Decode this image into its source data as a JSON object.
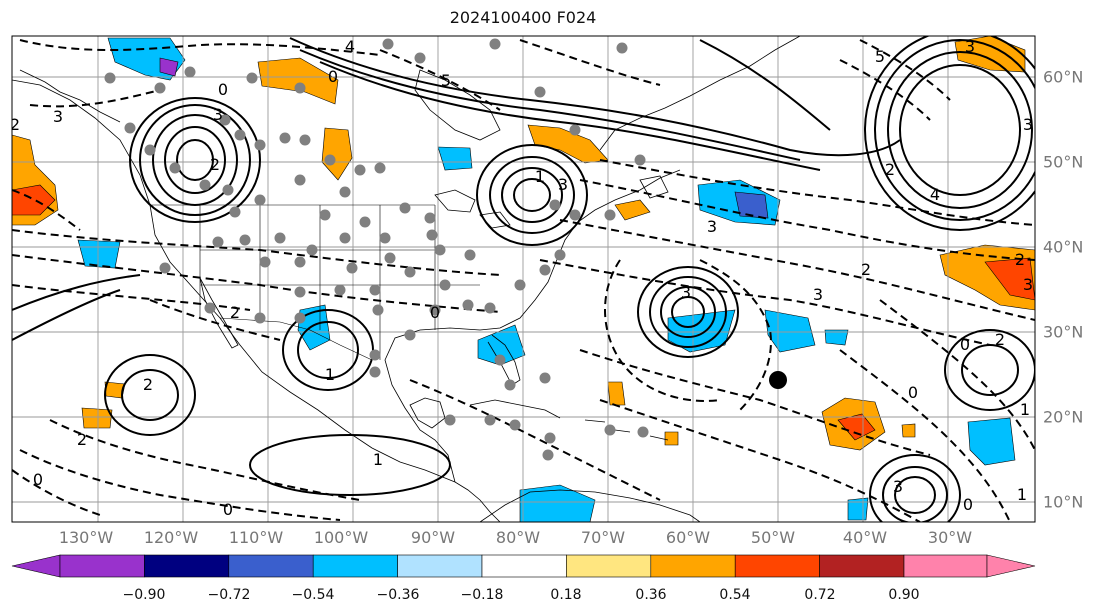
{
  "title": "2024100400 F024",
  "lon_labels": [
    "130°W",
    "120°W",
    "110°W",
    "100°W",
    "90°W",
    "80°W",
    "70°W",
    "60°W",
    "50°W",
    "40°W",
    "30°W"
  ],
  "lat_labels": [
    "60°N",
    "50°N",
    "40°N",
    "30°N",
    "20°N",
    "10°N"
  ],
  "colorbar": {
    "ticks": [
      "−0.90",
      "−0.72",
      "−0.54",
      "−0.36",
      "−0.18",
      "0.18",
      "0.36",
      "0.54",
      "0.72",
      "0.90"
    ],
    "colors": [
      "#9932CC",
      "#000080",
      "#3A5FCD",
      "#00BFFF",
      "#B0E2FF",
      "#FFFFFF",
      "#FFE680",
      "#FFA500",
      "#FF4500",
      "#B22222",
      "#FF82AB"
    ]
  },
  "contour_labels": [
    "3",
    "3",
    "5",
    "4",
    "5",
    "2",
    "3",
    "3",
    "1",
    "2",
    "4",
    "2",
    "2",
    "0",
    "0",
    "1",
    "1",
    "2",
    "0",
    "2",
    "0",
    "3",
    "3",
    "3",
    "2",
    "1",
    "1",
    "0",
    "2",
    "3",
    "3",
    "3",
    "0",
    "0",
    "2",
    "0"
  ],
  "fill_colors": {
    "light_orange": "#FFA500",
    "red": "#FF4500",
    "cyan": "#00BFFF",
    "blue": "#3A5FCD",
    "purple": "#9932CC"
  }
}
